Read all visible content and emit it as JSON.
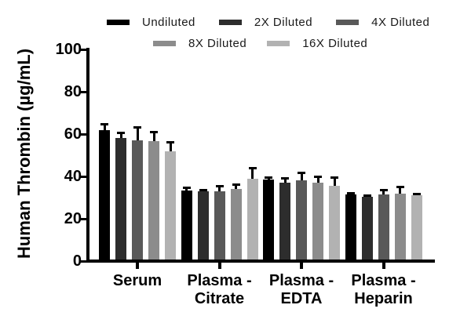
{
  "chart": {
    "ylabel": "Human Thrombin (µg/mL)"
  },
  "chart_data": {
    "type": "bar",
    "title": "",
    "xlabel": "",
    "ylabel": "Human Thrombin (µg/mL)",
    "ylim": [
      0,
      100
    ],
    "yticks": [
      0,
      20,
      40,
      60,
      80,
      100
    ],
    "grid": false,
    "legend_position": "top",
    "legend_rows": [
      [
        "Undiluted",
        "2X Diluted",
        "4X Diluted"
      ],
      [
        "8X Diluted",
        "16X Diluted"
      ]
    ],
    "categories": [
      "Serum",
      "Plasma - Citrate",
      "Plasma - EDTA",
      "Plasma - Heparin"
    ],
    "category_label_lines": [
      [
        "Serum"
      ],
      [
        "Plasma -",
        "Citrate"
      ],
      [
        "Plasma -",
        "EDTA"
      ],
      [
        "Plasma -",
        "Heparin"
      ]
    ],
    "error_bars": "upper, capped, black",
    "series": [
      {
        "name": "Undiluted",
        "color": "#000000",
        "values": [
          62,
          33.5,
          38.5,
          31.5
        ],
        "errors": [
          2.5,
          1,
          1,
          0.7
        ]
      },
      {
        "name": "2X Diluted",
        "color": "#2d2d2d",
        "values": [
          58,
          33,
          37,
          30.5
        ],
        "errors": [
          2.5,
          0.5,
          2,
          0.3
        ]
      },
      {
        "name": "4X Diluted",
        "color": "#595959",
        "values": [
          57,
          33,
          38,
          31.5
        ],
        "errors": [
          6,
          2.5,
          3.5,
          2
        ]
      },
      {
        "name": "8X Diluted",
        "color": "#8c8c8c",
        "values": [
          56.5,
          34,
          37,
          32
        ],
        "errors": [
          4.5,
          2,
          3,
          3
        ]
      },
      {
        "name": "16X Diluted",
        "color": "#b2b2b2",
        "values": [
          52,
          39,
          35.5,
          31
        ],
        "errors": [
          4,
          5,
          4,
          0.6
        ]
      }
    ]
  }
}
